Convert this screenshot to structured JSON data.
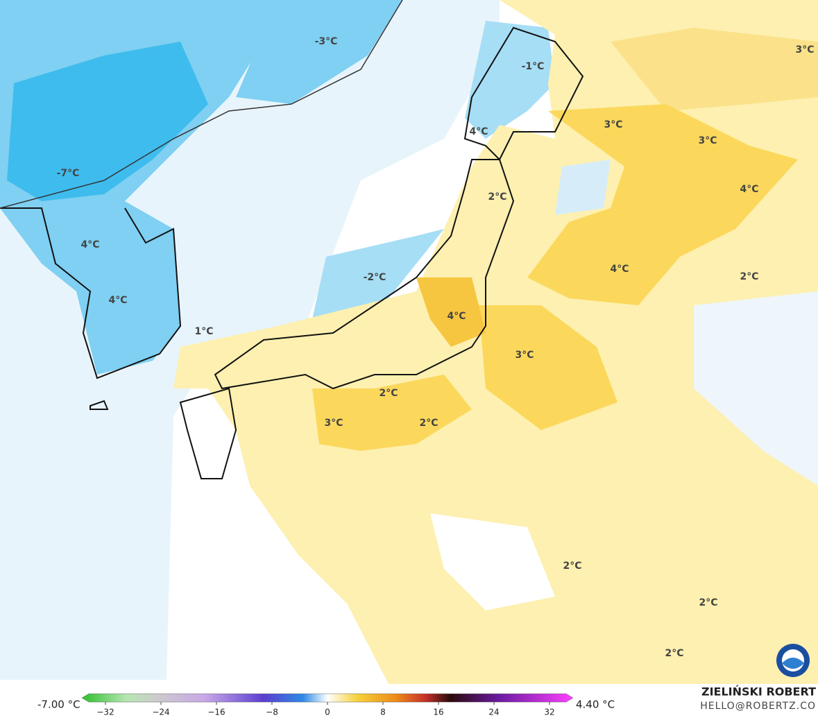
{
  "map": {
    "labels": [
      "-3°C",
      "-1°C",
      "3°C",
      "3°C",
      "4°C",
      "3°C",
      "-7°C",
      "2°C",
      "4°C",
      "4°C",
      "4°C",
      "-2°C",
      "2°C",
      "4°C",
      "4°C",
      "1°C",
      "3°C",
      "2°C",
      "3°C",
      "2°C",
      "2°C",
      "2°C",
      "2°C"
    ]
  },
  "colorbar": {
    "min_label": "-7.00 °C",
    "max_label": "4.40 °C",
    "ticks": [
      "−32",
      "−24",
      "−16",
      "−8",
      "0",
      "8",
      "16",
      "24",
      "32"
    ]
  },
  "credit": {
    "author": "ZIELIŃSKI ROBERT",
    "email": "HELLO@ROBERTZ.CO"
  }
}
